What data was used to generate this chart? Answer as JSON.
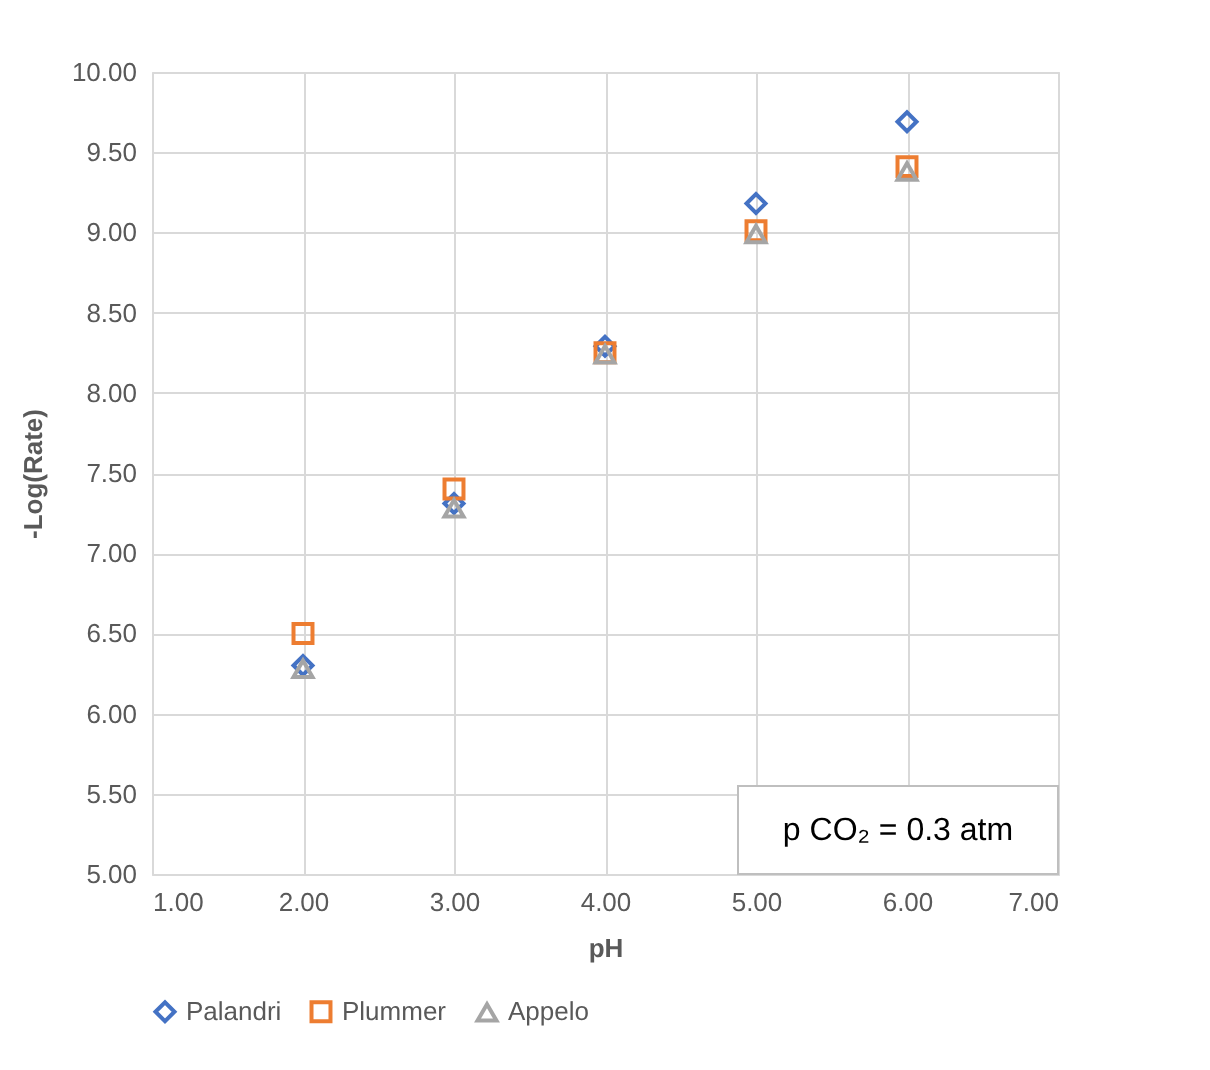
{
  "chart_data": {
    "type": "scatter",
    "xlabel": "pH",
    "ylabel": "-Log(Rate)",
    "x": [
      2,
      3,
      4,
      5,
      6
    ],
    "series": [
      {
        "name": "Palandri",
        "color": "#4472c4",
        "marker": "diamond",
        "values": [
          6.3,
          7.31,
          8.29,
          9.18,
          9.69
        ]
      },
      {
        "name": "Plummer",
        "color": "#ed7d31",
        "marker": "square",
        "values": [
          6.5,
          7.4,
          8.25,
          9.01,
          9.41
        ]
      },
      {
        "name": "Appelo",
        "color": "#a5a5a5",
        "marker": "triangle",
        "values": [
          6.28,
          7.28,
          8.24,
          8.99,
          9.38
        ]
      }
    ],
    "xlim": [
      1,
      7
    ],
    "xticks": [
      {
        "value": 1,
        "label": "1.00"
      },
      {
        "value": 2,
        "label": "2.00"
      },
      {
        "value": 3,
        "label": "3.00"
      },
      {
        "value": 4,
        "label": "4.00"
      },
      {
        "value": 5,
        "label": "5.00"
      },
      {
        "value": 6,
        "label": "6.00"
      },
      {
        "value": 7,
        "label": "7.00"
      }
    ],
    "ylim": [
      5,
      10
    ],
    "yticks": [
      {
        "value": 5,
        "label": "5.00"
      },
      {
        "value": 5.5,
        "label": "5.50"
      },
      {
        "value": 6,
        "label": "6.00"
      },
      {
        "value": 6.5,
        "label": "6.50"
      },
      {
        "value": 7,
        "label": "7.00"
      },
      {
        "value": 7.5,
        "label": "7.50"
      },
      {
        "value": 8,
        "label": "8.00"
      },
      {
        "value": 8.5,
        "label": "8.50"
      },
      {
        "value": 9,
        "label": "9.00"
      },
      {
        "value": 9.5,
        "label": "9.50"
      },
      {
        "value": 10,
        "label": "10.00"
      }
    ],
    "annotations": [
      "p CO₂ = 0.3 atm"
    ],
    "grid": true,
    "legend": "bottom"
  }
}
